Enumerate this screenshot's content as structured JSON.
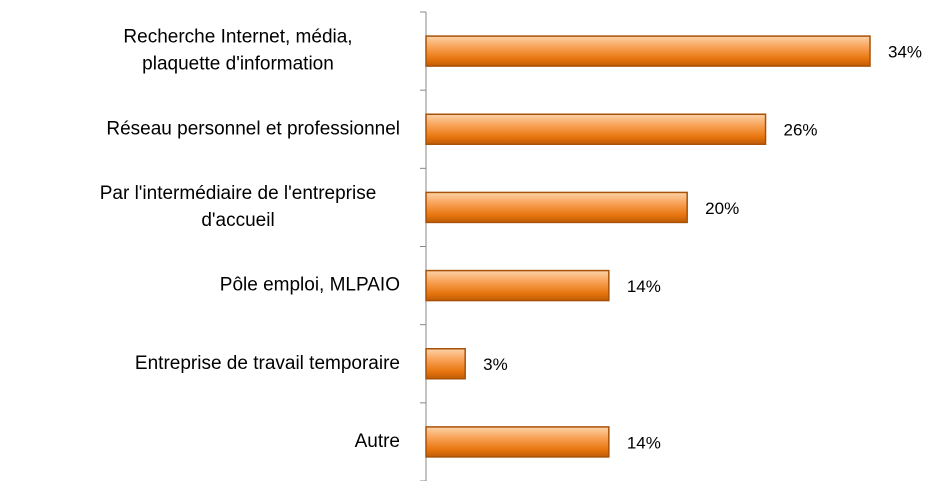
{
  "chart_data": {
    "type": "bar",
    "orientation": "horizontal",
    "categories": [
      "Recherche Internet, média,\nplaquette d'information",
      "Réseau personnel et professionnel",
      "Par l'intermédiaire de l'entreprise\nd'accueil",
      "Pôle emploi, MLPAIO",
      "Entreprise de travail temporaire",
      "Autre"
    ],
    "values": [
      34,
      26,
      20,
      14,
      3,
      14
    ],
    "value_labels": [
      "34%",
      "26%",
      "20%",
      "14%",
      "3%",
      "14%"
    ],
    "color": "#f79646"
  }
}
